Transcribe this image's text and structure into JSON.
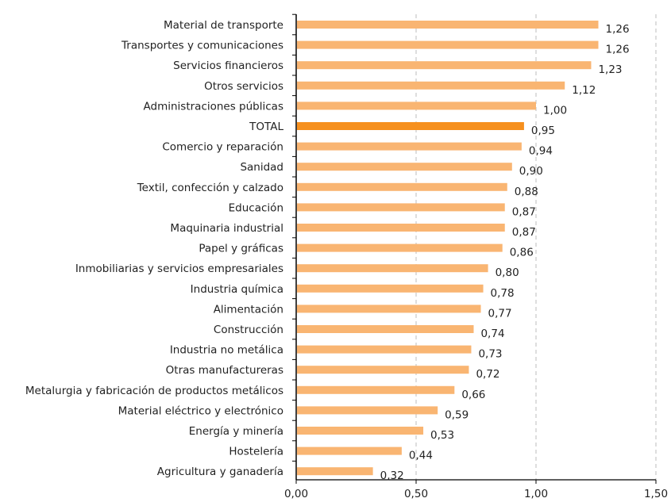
{
  "chart_data": {
    "type": "bar",
    "orientation": "horizontal",
    "categories": [
      "Material de transporte",
      "Transportes y comunicaciones",
      "Servicios financieros",
      "Otros servicios",
      "Administraciones públicas",
      "TOTAL",
      "Comercio y reparación",
      "Sanidad",
      "Textil, confección y calzado",
      "Educación",
      "Maquinaria industrial",
      "Papel y gráficas",
      "Inmobiliarias y servicios empresariales",
      "Industria química",
      "Alimentación",
      "Construcción",
      "Industria no metálica",
      "Otras manufactureras",
      "Metalurgia y fabricación de productos metálicos",
      "Material eléctrico y electrónico",
      "Energía y minería",
      "Hostelería",
      "Agricultura y ganadería"
    ],
    "values": [
      1.26,
      1.26,
      1.23,
      1.12,
      1.0,
      0.95,
      0.94,
      0.9,
      0.88,
      0.87,
      0.87,
      0.86,
      0.8,
      0.78,
      0.77,
      0.74,
      0.73,
      0.72,
      0.66,
      0.59,
      0.53,
      0.44,
      0.32
    ],
    "value_labels": [
      "1,26",
      "1,26",
      "1,23",
      "1,12",
      "1,00",
      "0,95",
      "0,94",
      "0,90",
      "0,88",
      "0,87",
      "0,87",
      "0,86",
      "0,80",
      "0,78",
      "0,77",
      "0,74",
      "0,73",
      "0,72",
      "0,66",
      "0,59",
      "0,53",
      "0,44",
      "0,32"
    ],
    "xlim": [
      0,
      1.5
    ],
    "xticks": [
      0,
      0.5,
      1.0,
      1.5
    ],
    "xtick_labels": [
      "0,00",
      "0,50",
      "1,00",
      "1,50"
    ],
    "grid": "vertical dashed",
    "highlight_category": "TOTAL",
    "colors": {
      "bar": "#f9b572",
      "highlight": "#f6901e",
      "grid": "#c8c8c8",
      "axis": "#000000"
    }
  }
}
